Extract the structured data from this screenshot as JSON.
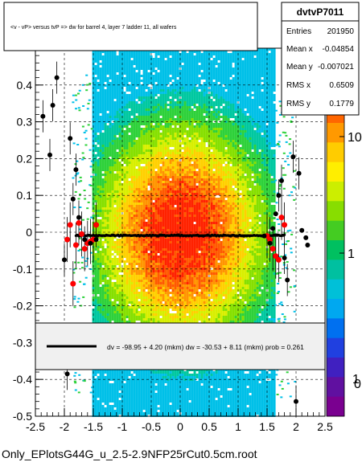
{
  "colors": {
    "frame": "#000000",
    "zero_line": "#000000",
    "fit_line": "#000000",
    "points_black": "#000000",
    "points_red": "#ff0000"
  },
  "title_box": {
    "text": "<v - vP>       versus  tvP =>  dw for barrel 4, layer 7 ladder 11, all wafers"
  },
  "stats": {
    "name": "dvtvP7011",
    "rows": [
      {
        "label": "Entries",
        "value": "201950"
      },
      {
        "label": "Mean x",
        "value": "-0.04854"
      },
      {
        "label": "Mean y",
        "value": "-0.007021"
      },
      {
        "label": "RMS x",
        "value": "0.6509"
      },
      {
        "label": "RMS y",
        "value": "0.1779"
      }
    ]
  },
  "legend": {
    "text": "dv =  -98.95 +  4.20 (mkm) dw =  -30.53 +  8.11 (mkm) prob = 0.261"
  },
  "footer": {
    "text": "Only_EPlotsG44G_u_2.5-2.9NFP25rCut0.5cm.root"
  },
  "chart_data": {
    "type": "heatmap",
    "xlim": [
      -2.5,
      2.5
    ],
    "ylim": [
      -0.5,
      0.5
    ],
    "x_ticks": [
      "-2.5",
      "-2",
      "-1.5",
      "-1",
      "-0.5",
      "0",
      "0.5",
      "1",
      "1.5",
      "2",
      "2.5"
    ],
    "y_ticks": [
      "-0.5",
      "-0.4",
      "-0.3",
      "-0.2",
      "-0.1",
      "0",
      "0.1",
      "0.2",
      "0.3",
      "0.4"
    ],
    "z_ticks": [
      "1",
      "10"
    ],
    "grid": true,
    "profile_black": {
      "x": [
        -2.37,
        -2.25,
        -2.2,
        -2.13,
        -2.0,
        -1.95,
        -1.9,
        -1.85,
        -1.8,
        -1.75,
        -1.65,
        -1.55,
        -1.45,
        1.45,
        1.55,
        1.6,
        1.65,
        1.7,
        1.75,
        1.8,
        1.85,
        1.95,
        2.0,
        2.05,
        2.1,
        2.17,
        2.2
      ],
      "y": [
        0.315,
        0.21,
        0.345,
        0.42,
        -0.075,
        -0.385,
        0.255,
        0.09,
        0.17,
        0.04,
        -0.02,
        -0.03,
        -0.02,
        -0.01,
        -0.03,
        0.01,
        0.05,
        0.1,
        0.14,
        -0.07,
        -0.13,
        0.205,
        -0.46,
        0.16,
        0.005,
        -0.015,
        -0.035
      ]
    },
    "profile_red": {
      "x": [
        -1.95,
        -1.9,
        -1.85,
        -1.8,
        -1.75,
        -1.7,
        -1.65,
        -1.6,
        -1.55,
        -1.5,
        -1.45,
        1.5,
        1.55,
        1.6,
        1.65,
        1.7,
        1.75,
        1.8
      ],
      "y": [
        -0.02,
        0.02,
        -0.14,
        -0.035,
        0.025,
        -0.005,
        -0.045,
        -0.03,
        -0.025,
        -0.02,
        0.02,
        -0.01,
        -0.02,
        -0.045,
        -0.065,
        -0.075,
        0.04,
        0.02
      ]
    },
    "fit_line": {
      "x": [
        -1.8,
        1.8
      ],
      "y": [
        -0.0089,
        -0.0089
      ]
    }
  }
}
